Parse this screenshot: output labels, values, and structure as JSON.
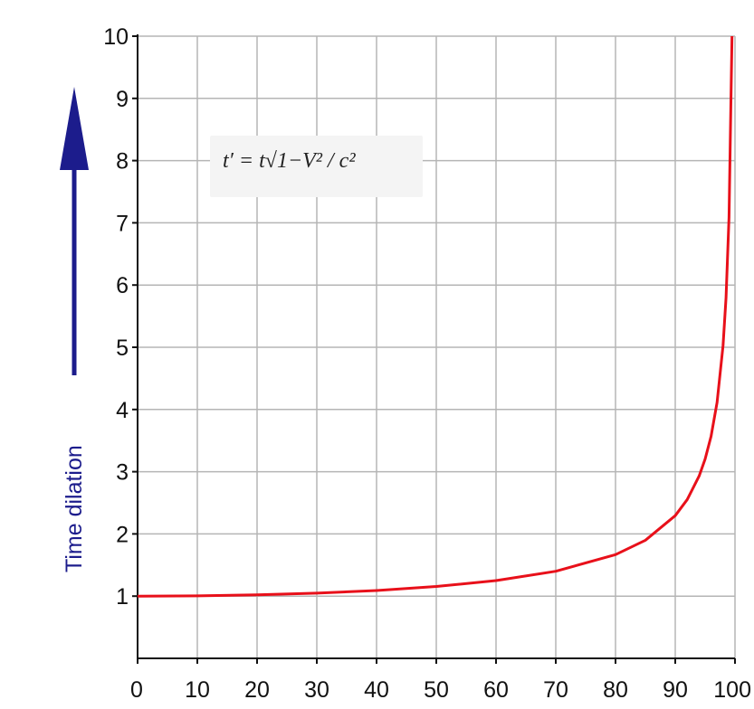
{
  "chart_data": {
    "type": "line",
    "title": "",
    "xlabel": "",
    "ylabel": "Time dilation",
    "xlim": [
      0,
      100
    ],
    "ylim": [
      0,
      10
    ],
    "grid": true,
    "x_ticks": [
      "0",
      "10",
      "20",
      "30",
      "40",
      "50",
      "60",
      "70",
      "80",
      "90",
      "100"
    ],
    "y_ticks": [
      "1",
      "2",
      "3",
      "4",
      "5",
      "6",
      "7",
      "8",
      "9",
      "10"
    ],
    "annotation": "t′ = t√1−V² / c²",
    "series": [
      {
        "color": "#e8101a",
        "x": [
          0,
          10,
          20,
          30,
          40,
          50,
          60,
          70,
          80,
          85,
          90,
          92,
          94,
          95,
          96,
          97,
          98,
          98.5,
          99,
          99.5
        ],
        "y": [
          1.0,
          1.005,
          1.021,
          1.048,
          1.091,
          1.155,
          1.25,
          1.4,
          1.667,
          1.898,
          2.294,
          2.552,
          2.931,
          3.203,
          3.571,
          4.113,
          5.025,
          5.795,
          7.089,
          10.0
        ]
      }
    ]
  },
  "colors": {
    "curve": "#e8101a",
    "arrow": "#1c1c8c",
    "grid": "#b5b5b5",
    "axis": "#111111"
  }
}
